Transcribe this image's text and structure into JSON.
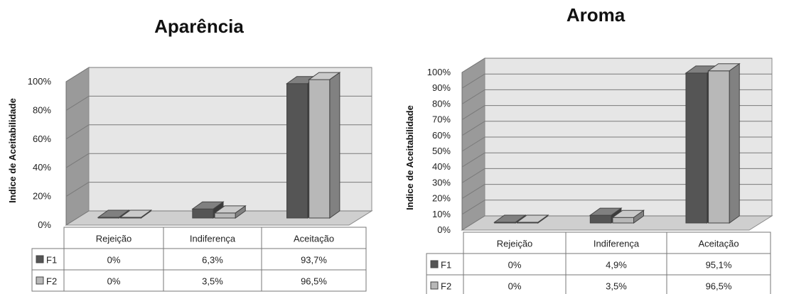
{
  "chart_data": [
    {
      "type": "bar",
      "title": "Aparência",
      "ylabel": "Indice de Aceitabilidade",
      "ylim": [
        0,
        100
      ],
      "yticks": [
        0,
        20,
        40,
        60,
        80,
        100
      ],
      "tick_suffix": "%",
      "categories": [
        "Rejeição",
        "Indiferença",
        "Aceitação"
      ],
      "series": [
        {
          "name": "F1",
          "values": [
            0,
            6.3,
            93.7
          ],
          "labels": [
            "0%",
            "6,3%",
            "93,7%"
          ],
          "color": "#555555"
        },
        {
          "name": "F2",
          "values": [
            0,
            3.5,
            96.5
          ],
          "labels": [
            "0%",
            "3,5%",
            "96,5%"
          ],
          "color": "#b8b8b8"
        }
      ],
      "grid": true,
      "style": "3d-clustered-column-with-data-table"
    },
    {
      "type": "bar",
      "title": "Aroma",
      "ylabel": "Indice de Aceitabilidade",
      "ylim": [
        0,
        100
      ],
      "yticks": [
        0,
        10,
        20,
        30,
        40,
        50,
        60,
        70,
        80,
        90,
        100
      ],
      "tick_suffix": "%",
      "categories": [
        "Rejeição",
        "Indiferença",
        "Aceitação"
      ],
      "series": [
        {
          "name": "F1",
          "values": [
            0,
            4.9,
            95.1
          ],
          "labels": [
            "0%",
            "4,9%",
            "95,1%"
          ],
          "color": "#555555"
        },
        {
          "name": "F2",
          "values": [
            0,
            3.5,
            96.5
          ],
          "labels": [
            "0%",
            "3,5%",
            "96,5%"
          ],
          "color": "#b8b8b8"
        }
      ],
      "grid": true,
      "style": "3d-clustered-column-with-data-table"
    }
  ]
}
